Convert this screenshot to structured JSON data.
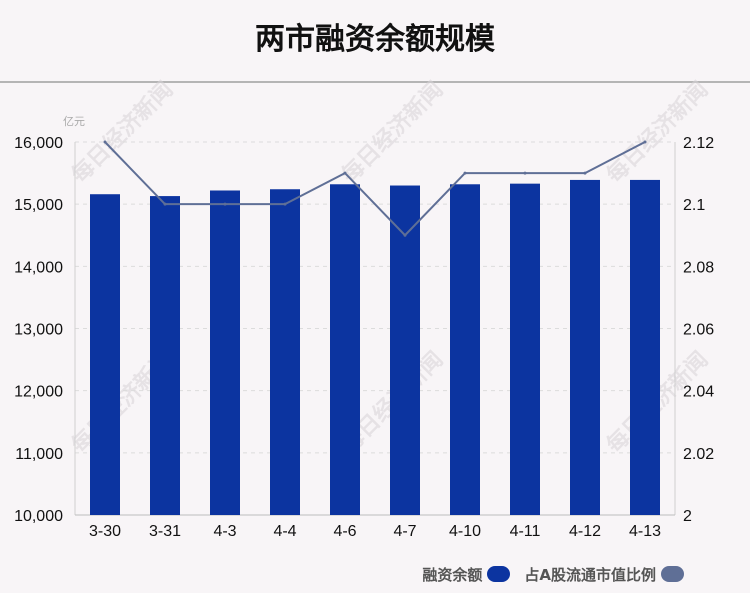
{
  "title": "两市融资余额规模",
  "watermark": "每日经济新闻",
  "legend": {
    "bar_label": "融资余额",
    "line_label": "占A股流通市值比例"
  },
  "colors": {
    "bar": "#0c34a0",
    "line": "#5f6f96"
  },
  "chart_data": {
    "type": "bar+line",
    "categories": [
      "3-30",
      "3-31",
      "4-3",
      "4-4",
      "4-6",
      "4-7",
      "4-10",
      "4-11",
      "4-12",
      "4-13"
    ],
    "left_axis": {
      "unit": "亿元",
      "ylim": [
        10000,
        16000
      ],
      "ticks": [
        10000,
        11000,
        12000,
        13000,
        14000,
        15000,
        16000
      ],
      "tick_labels": [
        "10,000",
        "11,000",
        "12,000",
        "13,000",
        "14,000",
        "15,000",
        "16,000"
      ]
    },
    "right_axis": {
      "ylim": [
        2.0,
        2.12
      ],
      "ticks": [
        2.0,
        2.02,
        2.04,
        2.06,
        2.08,
        2.1,
        2.12
      ],
      "tick_labels": [
        "2",
        "2.02",
        "2.04",
        "2.06",
        "2.08",
        "2.1",
        "2.12"
      ]
    },
    "series": [
      {
        "name": "融资余额",
        "type": "bar",
        "axis": "left",
        "values": [
          15160,
          15130,
          15220,
          15240,
          15320,
          15300,
          15320,
          15330,
          15390,
          15390
        ]
      },
      {
        "name": "占A股流通市值比例",
        "type": "line",
        "axis": "right",
        "values": [
          2.12,
          2.1,
          2.1,
          2.1,
          2.11,
          2.09,
          2.11,
          2.11,
          2.11,
          2.12
        ]
      }
    ],
    "grid": true,
    "legend_position": "bottom-right"
  }
}
